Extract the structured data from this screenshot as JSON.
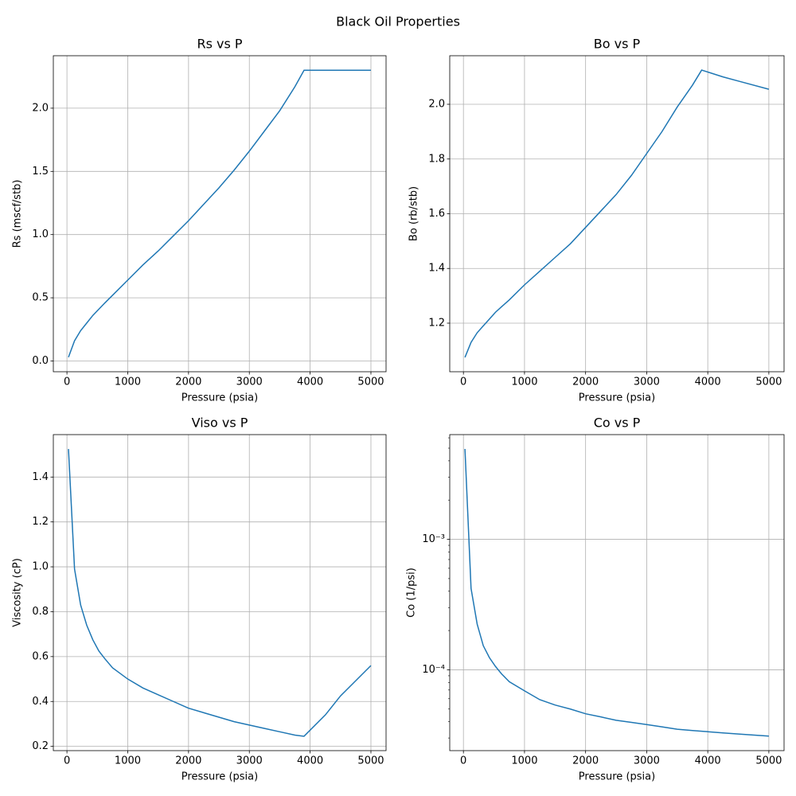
{
  "title": "Black Oil Properties",
  "chart_data": [
    {
      "type": "line",
      "title": "Rs vs P",
      "xlabel": "Pressure (psia)",
      "ylabel": "Rs (mscf/stb)",
      "color": "#1f77b4",
      "grid": true,
      "yscale": "linear",
      "x": [
        25,
        125,
        225,
        325,
        425,
        525,
        625,
        750,
        1000,
        1250,
        1500,
        1750,
        2000,
        2250,
        2500,
        2750,
        3000,
        3250,
        3500,
        3750,
        3900,
        4250,
        4500,
        5000
      ],
      "values": [
        0.03,
        0.16,
        0.24,
        0.3,
        0.36,
        0.41,
        0.46,
        0.52,
        0.64,
        0.76,
        0.87,
        0.99,
        1.11,
        1.24,
        1.37,
        1.51,
        1.66,
        1.82,
        1.98,
        2.17,
        2.3,
        2.3,
        2.3,
        2.3
      ],
      "xlim": [
        -224,
        5249
      ],
      "xticks": [
        0,
        1000,
        2000,
        3000,
        4000,
        5000
      ],
      "ylim": [
        -0.085,
        2.415
      ],
      "yticks": [
        {
          "value": 0,
          "label": "0.0"
        },
        0.5,
        {
          "value": 1,
          "label": "1.0"
        },
        1.5,
        {
          "value": 2,
          "label": "2.0"
        }
      ]
    },
    {
      "type": "line",
      "title": "Bo vs P",
      "xlabel": "Pressure (psia)",
      "ylabel": "Bo (rb/stb)",
      "color": "#1f77b4",
      "grid": true,
      "yscale": "linear",
      "x": [
        25,
        125,
        225,
        325,
        425,
        525,
        625,
        750,
        1000,
        1250,
        1500,
        1750,
        2000,
        2250,
        2500,
        2750,
        3000,
        3250,
        3500,
        3750,
        3900,
        4250,
        4500,
        5000
      ],
      "values": [
        1.075,
        1.13,
        1.165,
        1.19,
        1.215,
        1.24,
        1.26,
        1.285,
        1.34,
        1.39,
        1.44,
        1.49,
        1.55,
        1.61,
        1.67,
        1.74,
        1.82,
        1.9,
        1.99,
        2.07,
        2.125,
        2.1,
        2.085,
        2.055
      ],
      "xlim": [
        -224,
        5249
      ],
      "xticks": [
        0,
        1000,
        2000,
        3000,
        4000,
        5000
      ],
      "ylim": [
        1.0225,
        2.1775
      ],
      "yticks": [
        1.2,
        1.4,
        1.6,
        1.8,
        {
          "value": 2,
          "label": "2.0"
        }
      ]
    },
    {
      "type": "line",
      "title": "Viso vs P",
      "xlabel": "Pressure (psia)",
      "ylabel": "Viscosity (cP)",
      "color": "#1f77b4",
      "grid": true,
      "yscale": "linear",
      "x": [
        25,
        125,
        225,
        325,
        425,
        525,
        625,
        750,
        1000,
        1250,
        1500,
        1750,
        2000,
        2250,
        2500,
        2750,
        3000,
        3250,
        3500,
        3750,
        3900,
        4250,
        4500,
        5000
      ],
      "values": [
        1.525,
        0.99,
        0.83,
        0.74,
        0.675,
        0.625,
        0.59,
        0.55,
        0.5,
        0.46,
        0.43,
        0.4,
        0.37,
        0.35,
        0.33,
        0.31,
        0.295,
        0.28,
        0.265,
        0.25,
        0.245,
        0.34,
        0.425,
        0.56
      ],
      "xlim": [
        -224,
        5249
      ],
      "xticks": [
        0,
        1000,
        2000,
        3000,
        4000,
        5000
      ],
      "ylim": [
        0.181,
        1.589
      ],
      "yticks": [
        0.2,
        0.4,
        0.6,
        0.8,
        {
          "value": 1,
          "label": "1.0"
        },
        1.2,
        1.4
      ]
    },
    {
      "type": "line",
      "title": "Co vs P",
      "xlabel": "Pressure (psia)",
      "ylabel": "Co (1/psi)",
      "color": "#1f77b4",
      "grid": true,
      "yscale": "log",
      "x": [
        25,
        125,
        225,
        325,
        425,
        525,
        625,
        750,
        1000,
        1250,
        1500,
        1750,
        2000,
        2250,
        2500,
        2750,
        3000,
        3250,
        3500,
        3750,
        3900,
        4250,
        4500,
        5000
      ],
      "values": [
        0.00493,
        0.00042,
        0.000224,
        0.000153,
        0.000124,
        0.000106,
        9.3e-05,
        8.1e-05,
        6.9e-05,
        5.9e-05,
        5.37e-05,
        5e-05,
        4.6e-05,
        4.35e-05,
        4.1e-05,
        3.95e-05,
        3.8e-05,
        3.65e-05,
        3.5e-05,
        3.42e-05,
        3.38e-05,
        3.28e-05,
        3.22e-05,
        3.1e-05
      ],
      "xlim": [
        -224,
        5249
      ],
      "xticks": [
        0,
        1000,
        2000,
        3000,
        4000,
        5000
      ],
      "ylim": [
        2.4e-05,
        0.00635
      ],
      "yticks": [
        {
          "value": 0.0001,
          "label": "10⁻⁴"
        },
        {
          "value": 0.001,
          "label": "10⁻³"
        }
      ],
      "yminorticks": [
        3e-05,
        4e-05,
        5e-05,
        6e-05,
        7e-05,
        8e-05,
        9e-05,
        0.0002,
        0.0003,
        0.0004,
        0.0005,
        0.0006,
        0.0007,
        0.0008,
        0.0009,
        0.002,
        0.003,
        0.004,
        0.005,
        0.006
      ]
    }
  ]
}
